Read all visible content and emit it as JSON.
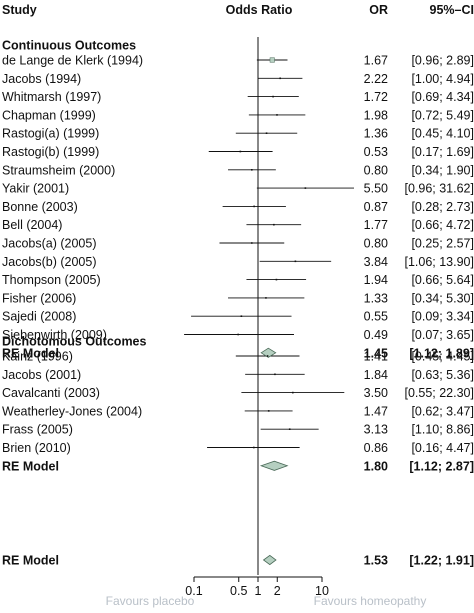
{
  "chart_data": {
    "type": "forest",
    "x_scale": "log",
    "xlim": [
      0.1,
      10
    ],
    "reference_line": 1,
    "headers": {
      "study": "Study",
      "plot": "Odds Ratio",
      "effect": "OR",
      "interval": "95%–CI"
    },
    "x_ticks": [
      {
        "value": 0.1,
        "label": "0.1"
      },
      {
        "value": 0.5,
        "label": "0.5"
      },
      {
        "value": 1,
        "label": "1"
      },
      {
        "value": 2,
        "label": "2"
      },
      {
        "value": 10,
        "label": "10"
      }
    ],
    "favours": {
      "left": "Favours placebo",
      "right": "Favours homeopathy"
    },
    "groups": [
      {
        "title": "Continuous Outcomes",
        "studies": [
          {
            "name": "de Lange de Klerk (1994)",
            "or": 1.67,
            "lo": 0.96,
            "hi": 2.89,
            "or_text": "1.67",
            "ci_text": "[0.96;  2.89]"
          },
          {
            "name": "Jacobs (1994)",
            "or": 2.22,
            "lo": 1.0,
            "hi": 4.94,
            "or_text": "2.22",
            "ci_text": "[1.00;  4.94]"
          },
          {
            "name": "Whitmarsh (1997)",
            "or": 1.72,
            "lo": 0.69,
            "hi": 4.34,
            "or_text": "1.72",
            "ci_text": "[0.69;  4.34]"
          },
          {
            "name": "Chapman (1999)",
            "or": 1.98,
            "lo": 0.72,
            "hi": 5.49,
            "or_text": "1.98",
            "ci_text": "[0.72;  5.49]"
          },
          {
            "name": "Rastogi(a) (1999)",
            "or": 1.36,
            "lo": 0.45,
            "hi": 4.1,
            "or_text": "1.36",
            "ci_text": "[0.45;  4.10]"
          },
          {
            "name": "Rastogi(b) (1999)",
            "or": 0.53,
            "lo": 0.17,
            "hi": 1.69,
            "or_text": "0.53",
            "ci_text": "[0.17;  1.69]"
          },
          {
            "name": "Straumsheim (2000)",
            "or": 0.8,
            "lo": 0.34,
            "hi": 1.9,
            "or_text": "0.80",
            "ci_text": "[0.34;  1.90]"
          },
          {
            "name": "Yakir (2001)",
            "or": 5.5,
            "lo": 0.96,
            "hi": 31.62,
            "or_text": "5.50",
            "ci_text": "[0.96; 31.62]"
          },
          {
            "name": "Bonne (2003)",
            "or": 0.87,
            "lo": 0.28,
            "hi": 2.73,
            "or_text": "0.87",
            "ci_text": "[0.28;  2.73]"
          },
          {
            "name": "Bell (2004)",
            "or": 1.77,
            "lo": 0.66,
            "hi": 4.72,
            "or_text": "1.77",
            "ci_text": "[0.66;  4.72]"
          },
          {
            "name": "Jacobs(a) (2005)",
            "or": 0.8,
            "lo": 0.25,
            "hi": 2.57,
            "or_text": "0.80",
            "ci_text": "[0.25;  2.57]"
          },
          {
            "name": "Jacobs(b) (2005)",
            "or": 3.84,
            "lo": 1.06,
            "hi": 13.9,
            "or_text": "3.84",
            "ci_text": "[1.06; 13.90]"
          },
          {
            "name": "Thompson (2005)",
            "or": 1.94,
            "lo": 0.66,
            "hi": 5.64,
            "or_text": "1.94",
            "ci_text": "[0.66;  5.64]"
          },
          {
            "name": "Fisher (2006)",
            "or": 1.33,
            "lo": 0.34,
            "hi": 5.3,
            "or_text": "1.33",
            "ci_text": "[0.34;  5.30]"
          },
          {
            "name": "Sajedi (2008)",
            "or": 0.55,
            "lo": 0.09,
            "hi": 3.34,
            "or_text": "0.55",
            "ci_text": "[0.09;  3.34]"
          },
          {
            "name": "Siebenwirth (2009)",
            "or": 0.49,
            "lo": 0.07,
            "hi": 3.65,
            "or_text": "0.49",
            "ci_text": "[0.07;  3.65]"
          }
        ],
        "summary": {
          "name": "RE Model",
          "or": 1.45,
          "lo": 1.12,
          "hi": 1.89,
          "or_text": "1.45",
          "ci_text": "[1.12;  1.89]"
        }
      },
      {
        "title": "Dichotomous Outcomes",
        "studies": [
          {
            "name": "Kainz (1996)",
            "or": 1.41,
            "lo": 0.45,
            "hi": 4.45,
            "or_text": "1.41",
            "ci_text": "[0.45;  4.45]"
          },
          {
            "name": "Jacobs (2001)",
            "or": 1.84,
            "lo": 0.63,
            "hi": 5.36,
            "or_text": "1.84",
            "ci_text": "[0.63;  5.36]"
          },
          {
            "name": "Cavalcanti (2003)",
            "or": 3.5,
            "lo": 0.55,
            "hi": 22.3,
            "or_text": "3.50",
            "ci_text": "[0.55; 22.30]"
          },
          {
            "name": "Weatherley-Jones (2004)",
            "or": 1.47,
            "lo": 0.62,
            "hi": 3.47,
            "or_text": "1.47",
            "ci_text": "[0.62;  3.47]"
          },
          {
            "name": "Frass (2005)",
            "or": 3.13,
            "lo": 1.1,
            "hi": 8.86,
            "or_text": "3.13",
            "ci_text": "[1.10;  8.86]"
          },
          {
            "name": "Brien (2010)",
            "or": 0.86,
            "lo": 0.16,
            "hi": 4.47,
            "or_text": "0.86",
            "ci_text": "[0.16;  4.47]"
          }
        ],
        "summary": {
          "name": "RE Model",
          "or": 1.8,
          "lo": 1.12,
          "hi": 2.87,
          "or_text": "1.80",
          "ci_text": "[1.12;  2.87]"
        }
      }
    ],
    "overall": {
      "name": "RE Model",
      "or": 1.53,
      "lo": 1.22,
      "hi": 1.91,
      "or_text": "1.53",
      "ci_text": "[1.22;  1.91]"
    },
    "colors": {
      "diamond_fill": "#b5cfc0",
      "diamond_stroke": "#4a6a58",
      "favours_text": "#b9c0c8",
      "axis": "#111111"
    }
  }
}
